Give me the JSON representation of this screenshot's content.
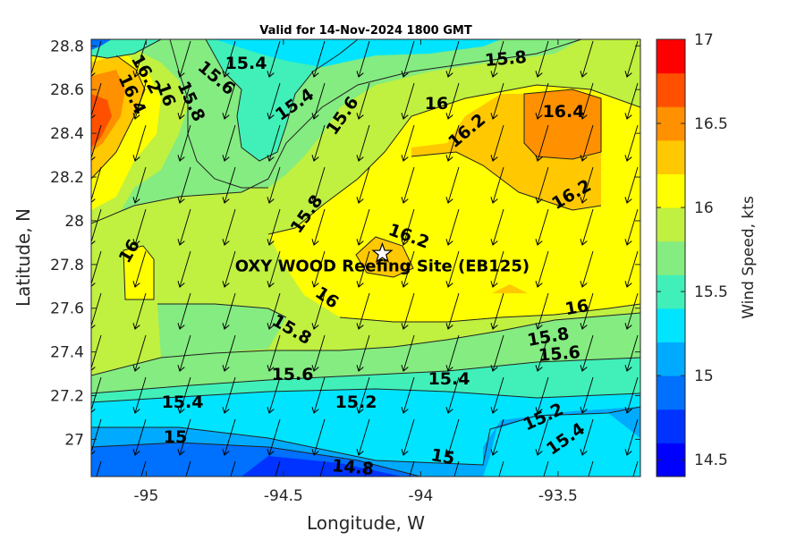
{
  "chart_data": {
    "type": "contour",
    "title": "Valid for 14-Nov-2024 1800 GMT",
    "xlabel": "Longitude, W",
    "ylabel": "Latitude, N",
    "xlim": [
      -95.2,
      -93.2
    ],
    "ylim": [
      26.83,
      28.83
    ],
    "xticks": [
      -95,
      -94.5,
      -94,
      -93.5
    ],
    "xtick_labels": [
      "-95",
      "-94.5",
      "-94",
      "-93.5"
    ],
    "yticks": [
      27,
      27.2,
      27.4,
      27.6,
      27.8,
      28,
      28.2,
      28.4,
      28.6,
      28.8
    ],
    "ytick_labels": [
      "27",
      "27.2",
      "27.4",
      "27.6",
      "27.8",
      "28",
      "28.2",
      "28.4",
      "28.6",
      "28.8"
    ],
    "colorbar": {
      "label": "Wind Speed, kts",
      "range": [
        14.4,
        17
      ],
      "ticks": [
        14.5,
        15,
        15.5,
        16,
        16.5,
        17
      ],
      "tick_labels": [
        "14.5",
        "15",
        "15.5",
        "16",
        "16.5",
        "17"
      ],
      "colors": [
        "#0000ff",
        "#0033ff",
        "#0070ff",
        "#00aaff",
        "#00e4ff",
        "#40f0b8",
        "#84ec80",
        "#c0f040",
        "#ffff00",
        "#ffc800",
        "#ff9000",
        "#ff5000",
        "#ff0000"
      ]
    },
    "contour_labels": [
      "16.2",
      "16.4",
      "16",
      "15.8",
      "15.4",
      "15.6",
      "15.4",
      "15.6",
      "15.8",
      "16",
      "16.2",
      "16.4",
      "16.2",
      "15.8",
      "16",
      "16.2",
      "16",
      "16",
      "15.8",
      "15.6",
      "15.4",
      "15.2",
      "15.4",
      "15.8",
      "15.6",
      "15",
      "14.8",
      "15",
      "15.2",
      "15.4"
    ],
    "site": {
      "label": "OXY WOOD Reefing Site (EB125)",
      "lon": -94.14,
      "lat": 27.85
    },
    "wind_direction": "from north-northeast"
  }
}
